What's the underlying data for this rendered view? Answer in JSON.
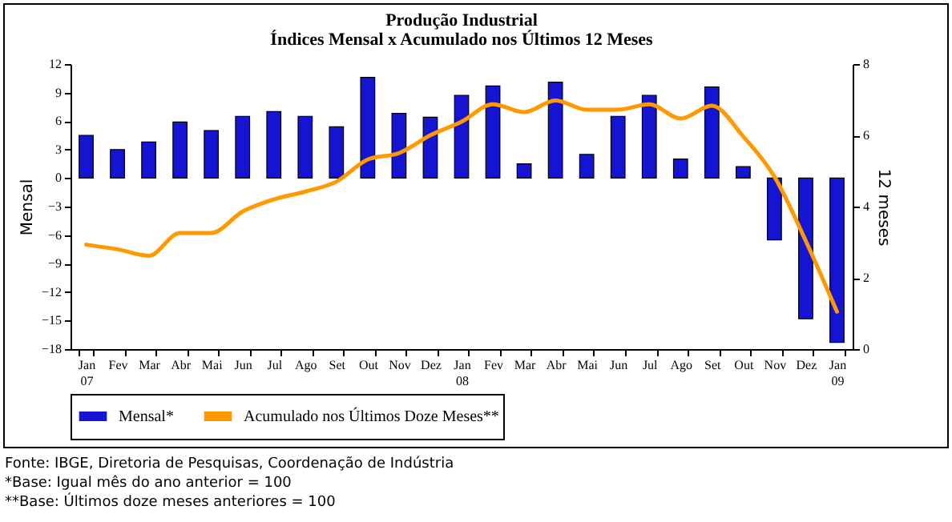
{
  "chart_data": {
    "type": "bar",
    "title": "Produção Industrial",
    "subtitle": "Índices Mensal x Acumulado nos Últimos 12 Meses",
    "ylabel": "Mensal",
    "y2label": "12 meses",
    "categories": [
      "Jan 07",
      "Fev",
      "Mar",
      "Abr",
      "Mai",
      "Jun",
      "Jul",
      "Ago",
      "Set",
      "Out",
      "Nov",
      "Dez",
      "Jan 08",
      "Fev",
      "Mar",
      "Abr",
      "Mai",
      "Jun",
      "Jul",
      "Ago",
      "Set",
      "Out",
      "Nov",
      "Dez",
      "Jan 09"
    ],
    "series": [
      {
        "name": "Mensal*",
        "color": "#1414d2",
        "values": [
          4.5,
          3.0,
          3.8,
          5.9,
          5.0,
          6.5,
          7.0,
          6.5,
          5.4,
          10.6,
          6.8,
          6.4,
          8.7,
          9.7,
          1.5,
          10.1,
          2.5,
          6.5,
          8.7,
          2.0,
          9.6,
          1.2,
          -6.5,
          -14.8,
          -17.3
        ]
      },
      {
        "name": "Acumulado nos Últimos Doze Meses**",
        "type": "line",
        "axis": "y2",
        "color": "#ff9900",
        "values": [
          2.93,
          2.8,
          2.62,
          3.26,
          3.26,
          3.86,
          4.2,
          4.42,
          4.7,
          5.32,
          5.5,
          6.0,
          6.38,
          6.87,
          6.65,
          6.98,
          6.72,
          6.72,
          6.87,
          6.47,
          6.83,
          5.97,
          4.84,
          3.04,
          1.05
        ]
      }
    ],
    "ylim": [
      -18,
      12
    ],
    "yticks": [
      -18,
      -15,
      -12,
      -9,
      -6,
      -3,
      0,
      3,
      6,
      9,
      12
    ],
    "y2lim": [
      0,
      8
    ],
    "y2ticks": [
      0,
      2,
      4,
      6,
      8
    ],
    "legend": "bottom",
    "marker": "none",
    "line_style": "solid",
    "annotations": [
      "Fonte: IBGE, Diretoria de Pesquisas, Coordenação de Indústria",
      "*Base: Igual mês do ano anterior = 100",
      "**Base: Últimos doze meses anteriores = 100"
    ]
  }
}
